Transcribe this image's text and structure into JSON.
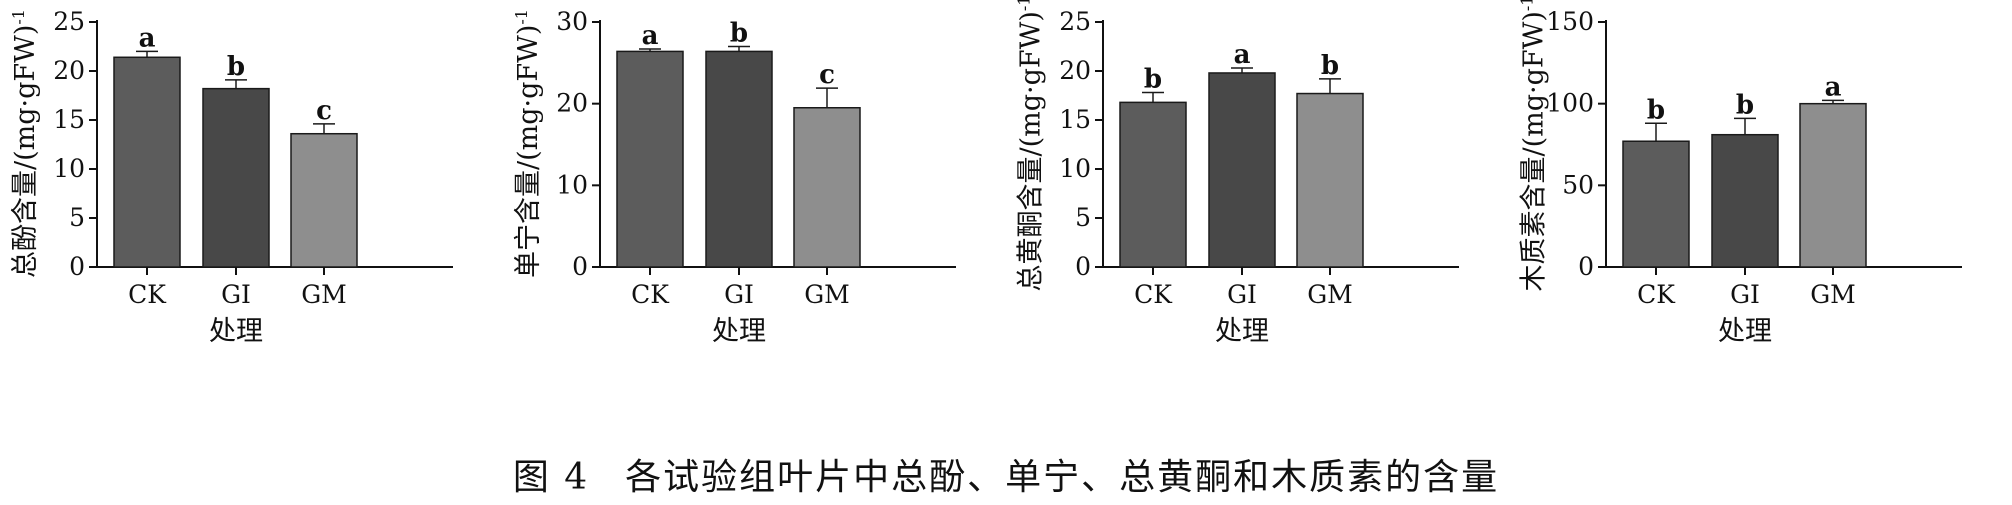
{
  "caption": {
    "figure_no": "图 4",
    "text": "各试验组叶片中总酚、单宁、总黄酮和木质素的含量"
  },
  "colors": {
    "CK": "#5c5c5c",
    "GI": "#484848",
    "GM": "#8e8e8e",
    "axis": "#111111"
  },
  "chart_data": [
    {
      "type": "bar",
      "categories": [
        "CK",
        "GI",
        "GM"
      ],
      "values": [
        21.4,
        18.2,
        13.6
      ],
      "errors": [
        0.6,
        0.9,
        1.0
      ],
      "letters": [
        "a",
        "b",
        "c"
      ],
      "ylim": [
        0,
        25
      ],
      "yticks": [
        0,
        5,
        10,
        15,
        20,
        25
      ],
      "xlabel": "处理",
      "ylabel": "总酚含量/(mg·gFW)",
      "ylabel_sup": "-1"
    },
    {
      "type": "bar",
      "categories": [
        "CK",
        "GI",
        "GM"
      ],
      "values": [
        26.4,
        26.4,
        19.5
      ],
      "errors": [
        0.3,
        0.6,
        2.4
      ],
      "letters": [
        "a",
        "b",
        "c"
      ],
      "ylim": [
        0,
        30
      ],
      "yticks": [
        0,
        10,
        20,
        30
      ],
      "xlabel": "处理",
      "ylabel": "单宁含量/(mg·gFW)",
      "ylabel_sup": "-1"
    },
    {
      "type": "bar",
      "categories": [
        "CK",
        "GI",
        "GM"
      ],
      "values": [
        16.8,
        19.8,
        17.7
      ],
      "errors": [
        1.0,
        0.5,
        1.5
      ],
      "letters": [
        "b",
        "a",
        "b"
      ],
      "ylim": [
        0,
        25
      ],
      "yticks": [
        0,
        5,
        10,
        15,
        20,
        25
      ],
      "xlabel": "处理",
      "ylabel": "总黄酮含量/(mg·gFW)",
      "ylabel_sup": "-1"
    },
    {
      "type": "bar",
      "categories": [
        "CK",
        "GI",
        "GM"
      ],
      "values": [
        77,
        81,
        100
      ],
      "errors": [
        11,
        10,
        2
      ],
      "letters": [
        "b",
        "b",
        "a"
      ],
      "ylim": [
        0,
        150
      ],
      "yticks": [
        0,
        50,
        100,
        150
      ],
      "xlabel": "处理",
      "ylabel": "木质素含量/(mg·gFW)",
      "ylabel_sup": "-1"
    }
  ]
}
